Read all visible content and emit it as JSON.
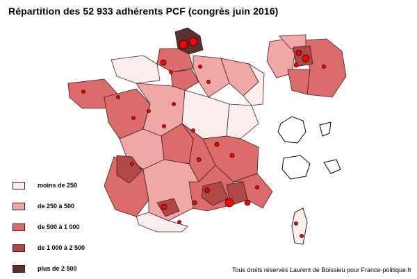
{
  "title": "Répartition des 52 933 adhérents PCF (congrès juin 2016)",
  "credit": "Tous droits réservés Laurent de Boissieu pour France-politique.fr",
  "legend": [
    {
      "label": "moins de 250",
      "color": "#fdeeee"
    },
    {
      "label": "de 250 à 500",
      "color": "#f2a7a7"
    },
    {
      "label": "de 500 à 1 000",
      "color": "#dc6b6b"
    },
    {
      "label": "de 1 000 à 2 500",
      "color": "#b04848"
    },
    {
      "label": "plus de 2 500",
      "color": "#5a3030"
    }
  ],
  "colors": {
    "border": "#3b1f1f",
    "dot": "#ff0000",
    "outline": "#000000"
  }
}
